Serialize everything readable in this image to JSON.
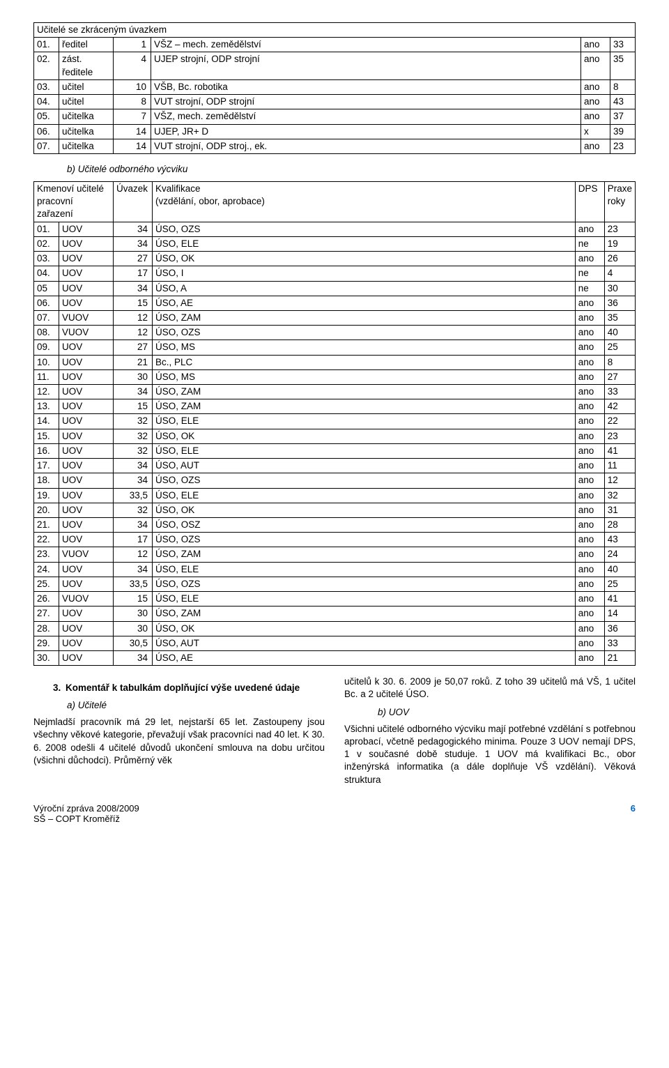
{
  "table1": {
    "header": "Učitelé se zkráceným úvazkem",
    "rows": [
      [
        "01.",
        "ředitel",
        "1",
        "VŠZ – mech. zemědělství",
        "ano",
        "33"
      ],
      [
        "02.",
        "zást. ředitele",
        "4",
        "UJEP strojní, ODP strojní",
        "ano",
        "35"
      ],
      [
        "03.",
        "učitel",
        "10",
        "VŠB, Bc. robotika",
        "ano",
        "8"
      ],
      [
        "04.",
        "učitel",
        "8",
        "VUT strojní, ODP strojní",
        "ano",
        "43"
      ],
      [
        "05.",
        "učitelka",
        "7",
        "VŠZ, mech. zemědělství",
        "ano",
        "37"
      ],
      [
        "06.",
        "učitelka",
        "14",
        "UJEP, JR+ D",
        "x",
        "39"
      ],
      [
        "07.",
        "učitelka",
        "14",
        "VUT strojní, ODP stroj., ek.",
        "ano",
        "23"
      ]
    ]
  },
  "section_b": "b)  Učitelé odborného výcviku",
  "table2": {
    "head": [
      "Kmenoví učitelé\npracovní zařazení",
      "Úvazek",
      "Kvalifikace\n(vzdělání, obor, aprobace)",
      "DPS",
      "Praxe\nroky"
    ],
    "rows": [
      [
        "01.",
        "UOV",
        "34",
        "ÚSO, OZS",
        "ano",
        "23"
      ],
      [
        "02.",
        "UOV",
        "34",
        "ÚSO, ELE",
        "ne",
        "19"
      ],
      [
        "03.",
        "UOV",
        "27",
        "ÚSO, OK",
        "ano",
        "26"
      ],
      [
        "04.",
        "UOV",
        "17",
        "ÚSO, I",
        "ne",
        "4"
      ],
      [
        "05",
        "UOV",
        "34",
        "ÚSO, A",
        "ne",
        "30"
      ],
      [
        "06.",
        "UOV",
        "15",
        "ÚSO, AE",
        "ano",
        "36"
      ],
      [
        "07.",
        "VUOV",
        "12",
        "ÚSO, ZAM",
        "ano",
        "35"
      ],
      [
        "08.",
        "VUOV",
        "12",
        "ÚSO, OZS",
        "ano",
        "40"
      ],
      [
        "09.",
        "UOV",
        "27",
        "ÚSO, MS",
        "ano",
        "25"
      ],
      [
        "10.",
        "UOV",
        "21",
        "Bc., PLC",
        "ano",
        "8"
      ],
      [
        "11.",
        "UOV",
        "30",
        "ÚSO, MS",
        "ano",
        "27"
      ],
      [
        "12.",
        "UOV",
        "34",
        "ÚSO, ZAM",
        "ano",
        "33"
      ],
      [
        "13.",
        "UOV",
        "15",
        "ÚSO, ZAM",
        "ano",
        "42"
      ],
      [
        "14.",
        "UOV",
        "32",
        "ÚSO, ELE",
        "ano",
        "22"
      ],
      [
        "15.",
        "UOV",
        "32",
        "ÚSO, OK",
        "ano",
        "23"
      ],
      [
        "16.",
        "UOV",
        "32",
        "ÚSO, ELE",
        "ano",
        "41"
      ],
      [
        "17.",
        "UOV",
        "34",
        "ÚSO, AUT",
        "ano",
        "11"
      ],
      [
        "18.",
        "UOV",
        "34",
        "ÚSO, OZS",
        "ano",
        "12"
      ],
      [
        "19.",
        "UOV",
        "33,5",
        "ÚSO, ELE",
        "ano",
        "32"
      ],
      [
        "20.",
        "UOV",
        "32",
        "ÚSO, OK",
        "ano",
        "31"
      ],
      [
        "21.",
        "UOV",
        "34",
        "ÚSO, OSZ",
        "ano",
        "28"
      ],
      [
        "22.",
        "UOV",
        "17",
        "ÚSO, OZS",
        "ano",
        "43"
      ],
      [
        "23.",
        "VUOV",
        "12",
        "ÚSO, ZAM",
        "ano",
        "24"
      ],
      [
        "24.",
        "UOV",
        "34",
        "ÚSO, ELE",
        "ano",
        "40"
      ],
      [
        "25.",
        "UOV",
        "33,5",
        "ÚSO, OZS",
        "ano",
        "25"
      ],
      [
        "26.",
        "VUOV",
        "15",
        "ÚSO, ELE",
        "ano",
        "41"
      ],
      [
        "27.",
        "UOV",
        "30",
        "ÚSO, ZAM",
        "ano",
        "14"
      ],
      [
        "28.",
        "UOV",
        "30",
        "ÚSO, OK",
        "ano",
        "36"
      ],
      [
        "29.",
        "UOV",
        "30,5",
        "ÚSO, AUT",
        "ano",
        "33"
      ],
      [
        "30.",
        "UOV",
        "34",
        "ÚSO, AE",
        "ano",
        "21"
      ]
    ]
  },
  "section3": {
    "num": "3.",
    "text": "Komentář k tabulkám doplňující výše uvedené údaje"
  },
  "sub_a": "a)  Učitelé",
  "sub_b": "b)  UOV",
  "para_left": "Nejmladší pracovník má 29 let, nejstarší 65 let. Zastoupeny jsou všechny věkové kategorie, převažují však pracovníci nad 40 let. K 30. 6. 2008 odešli 4 učitelé důvodů ukončení smlouva na dobu určitou (všichni důchodci). Průměrný věk",
  "para_right_top": "učitelů k 30. 6. 2009 je 50,07 roků. Z toho 39 učitelů má VŠ, 1 učitel Bc. a 2 učitelé ÚSO.",
  "para_right_bottom": "Všichni učitelé odborného výcviku mají potřebné vzdělání s potřebnou aprobací, včetně pedagogického minima. Pouze 3 UOV nemají DPS, 1 v současné době studuje. 1 UOV má kvalifikaci Bc., obor inženýrská informatika (a dále doplňuje VŠ vzdělání). Věková struktura",
  "footer": {
    "left1": "Výroční zpráva 2008/2009",
    "left2": "SŠ – COPT Kroměříž",
    "page": "6"
  }
}
